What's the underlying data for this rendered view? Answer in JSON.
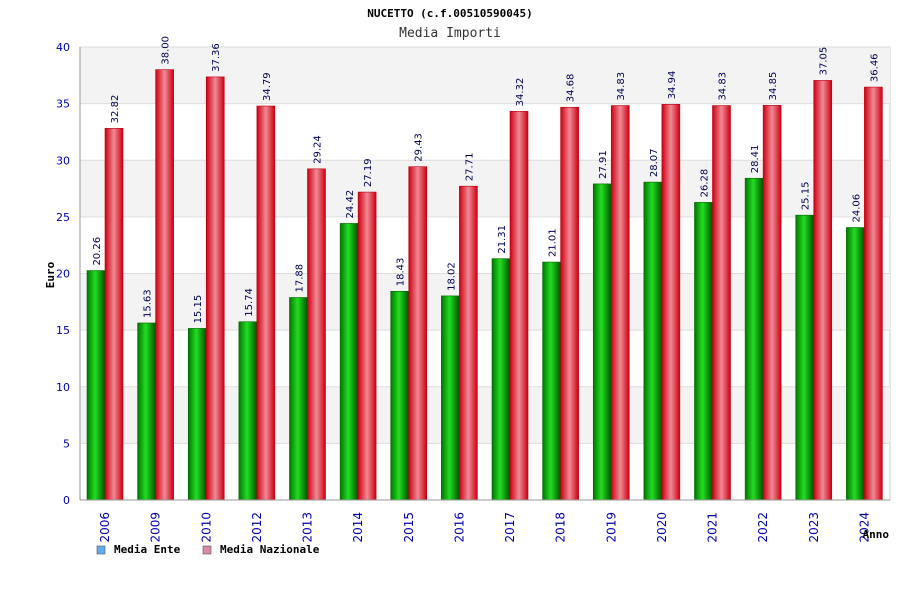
{
  "chart_data": {
    "type": "bar",
    "title": "NUCETTO (c.f.00510590045)",
    "subtitle": "Media Importi",
    "ylabel": "Euro",
    "xlabel": "Anno",
    "ylim": [
      0,
      40
    ],
    "yticks": [
      0,
      5,
      10,
      15,
      20,
      25,
      30,
      35,
      40
    ],
    "categories": [
      "2006",
      "2009",
      "2010",
      "2012",
      "2013",
      "2014",
      "2015",
      "2016",
      "2017",
      "2018",
      "2019",
      "2020",
      "2021",
      "2022",
      "2023",
      "2024"
    ],
    "series": [
      {
        "name": "Media Ente",
        "color": "#00bb00",
        "labels": [
          "20.26",
          "15.63",
          "15.15",
          "15.74",
          "17.88",
          "24.42",
          "18.43",
          "18.02",
          "21.31",
          "21.01",
          "27.91",
          "28.07",
          "26.28",
          "28.41",
          "25.15",
          "24.06"
        ],
        "values": [
          20.26,
          15.63,
          15.15,
          15.74,
          17.88,
          24.42,
          18.43,
          18.02,
          21.31,
          21.01,
          27.91,
          28.07,
          26.28,
          28.41,
          25.15,
          24.06
        ]
      },
      {
        "name": "Media Nazionale",
        "color": "#ee1122",
        "labels": [
          "32.82",
          "38.00",
          "37.36",
          "34.79",
          "29.24",
          "27.19",
          "29.43",
          "27.71",
          "34.32",
          "34.68",
          "34.83",
          "34.94",
          "34.83",
          "34.85",
          "37.05",
          "36.46"
        ],
        "values": [
          32.82,
          38.0,
          37.36,
          34.79,
          29.24,
          27.19,
          29.43,
          27.71,
          34.32,
          34.68,
          34.83,
          34.94,
          34.83,
          34.85,
          37.05,
          36.46
        ]
      }
    ],
    "legend": [
      {
        "label": "Media Ente",
        "color": "#66aaee"
      },
      {
        "label": "Media Nazionale",
        "color": "#dd88aa"
      }
    ],
    "grid": true,
    "legend_position": "bottom-left"
  }
}
